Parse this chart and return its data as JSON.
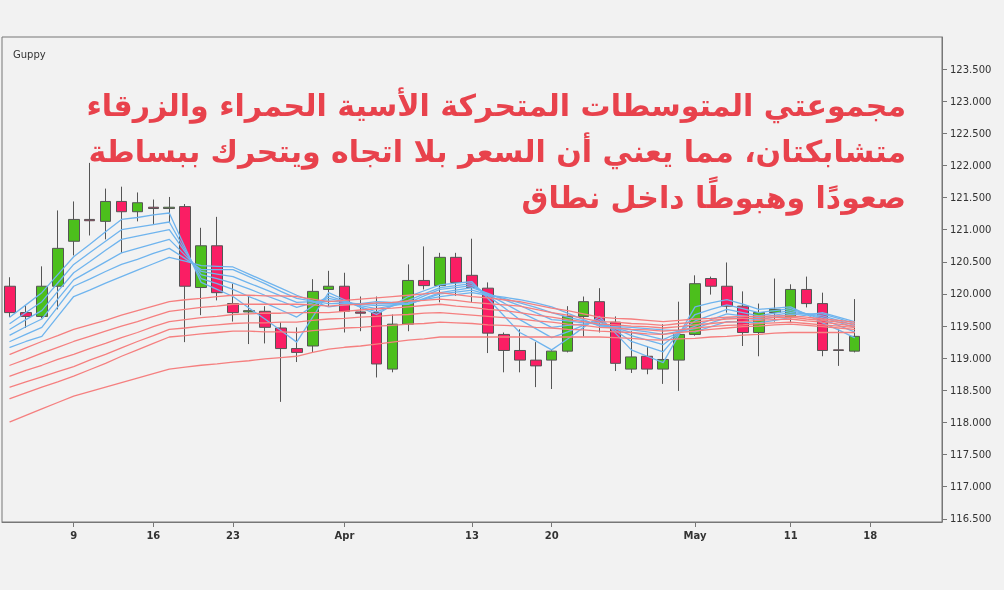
{
  "chart_data": {
    "type": "candlestick",
    "title": "Guppy",
    "annotations": [
      "مجموعتي المتوسطات المتحركة الأسية الحمراء والزرقاء",
      "متشابكتان، مما يعني أن السعر بلا اتجاه ويتحرك ببساطة",
      "صعودًا وهبوطًا داخل نطاق"
    ],
    "categories": [
      null,
      null,
      null,
      null,
      "9",
      null,
      null,
      null,
      null,
      "16",
      null,
      null,
      null,
      null,
      "23",
      null,
      null,
      null,
      null,
      null,
      null,
      "Apr",
      null,
      null,
      null,
      null,
      null,
      null,
      null,
      "13",
      null,
      null,
      null,
      null,
      "20",
      null,
      null,
      null,
      null,
      null,
      null,
      null,
      null,
      "May",
      null,
      null,
      null,
      null,
      null,
      "11",
      null,
      null,
      null,
      null,
      "18",
      null,
      null,
      null,
      null
    ],
    "ohlc": [
      [
        120.12,
        120.26,
        119.64,
        119.71
      ],
      [
        119.71,
        119.82,
        119.47,
        119.65
      ],
      [
        119.65,
        120.43,
        119.62,
        120.12
      ],
      [
        120.12,
        121.3,
        119.76,
        120.71
      ],
      [
        120.82,
        121.44,
        120.6,
        121.16
      ],
      [
        121.16,
        122.04,
        120.91,
        121.14
      ],
      [
        121.13,
        121.64,
        120.85,
        121.44
      ],
      [
        121.44,
        121.67,
        120.64,
        121.28
      ],
      [
        121.28,
        121.58,
        121.13,
        121.42
      ],
      [
        121.35,
        121.47,
        121.09,
        121.33
      ],
      [
        121.33,
        121.51,
        121.11,
        121.35
      ],
      [
        121.36,
        121.4,
        119.25,
        120.12
      ],
      [
        120.1,
        121.03,
        119.67,
        120.75
      ],
      [
        120.75,
        121.2,
        119.9,
        120.02
      ],
      [
        119.85,
        120.16,
        119.57,
        119.71
      ],
      [
        119.72,
        119.98,
        119.22,
        119.74
      ],
      [
        119.73,
        119.81,
        119.23,
        119.48
      ],
      [
        119.47,
        119.56,
        118.32,
        119.15
      ],
      [
        119.15,
        119.48,
        118.94,
        119.09
      ],
      [
        119.19,
        120.23,
        119.09,
        120.04
      ],
      [
        120.07,
        120.36,
        119.81,
        120.12
      ],
      [
        120.12,
        120.33,
        119.4,
        119.73
      ],
      [
        119.72,
        119.96,
        119.42,
        119.7
      ],
      [
        119.71,
        119.96,
        118.7,
        118.91
      ],
      [
        118.83,
        119.68,
        118.78,
        119.53
      ],
      [
        119.53,
        120.46,
        119.42,
        120.21
      ],
      [
        120.21,
        120.74,
        120.07,
        120.13
      ],
      [
        120.13,
        120.64,
        119.87,
        120.57
      ],
      [
        120.57,
        120.64,
        119.97,
        120.18
      ],
      [
        120.29,
        120.86,
        119.87,
        120.1
      ],
      [
        120.09,
        120.18,
        119.08,
        119.39
      ],
      [
        119.37,
        119.4,
        118.78,
        119.12
      ],
      [
        119.12,
        119.45,
        118.78,
        118.97
      ],
      [
        118.97,
        119.25,
        118.55,
        118.88
      ],
      [
        118.97,
        119.13,
        118.52,
        119.11
      ],
      [
        119.11,
        119.81,
        119.09,
        119.65
      ],
      [
        119.65,
        119.96,
        119.34,
        119.88
      ],
      [
        119.88,
        120.09,
        119.4,
        119.56
      ],
      [
        119.56,
        119.65,
        118.8,
        118.92
      ],
      [
        118.83,
        119.42,
        118.77,
        119.02
      ],
      [
        119.03,
        119.19,
        118.75,
        118.83
      ],
      [
        118.83,
        119.53,
        118.6,
        118.98
      ],
      [
        118.97,
        119.88,
        118.49,
        119.37
      ],
      [
        119.37,
        120.29,
        119.35,
        120.16
      ],
      [
        120.24,
        120.27,
        119.99,
        120.12
      ],
      [
        120.12,
        120.49,
        119.71,
        119.81
      ],
      [
        119.81,
        120.04,
        119.19,
        119.4
      ],
      [
        119.4,
        119.85,
        119.03,
        119.71
      ],
      [
        119.71,
        120.24,
        119.57,
        119.76
      ],
      [
        119.64,
        120.15,
        119.56,
        120.07
      ],
      [
        120.07,
        120.27,
        119.79,
        119.85
      ],
      [
        119.85,
        120.02,
        119.03,
        119.12
      ],
      [
        119.13,
        119.45,
        118.88,
        119.12
      ],
      [
        119.11,
        119.92,
        119.09,
        119.34
      ],
      null,
      null,
      null,
      null,
      null
    ],
    "colors": [
      "#fa1e64",
      "#fa1e64",
      "#4cbf1c",
      "#4cbf1c",
      "#4cbf1c",
      "#fa1e64",
      "#4cbf1c",
      "#fa1e64",
      "#4cbf1c",
      "#fa1e64",
      "#4cbf1c",
      "#fa1e64",
      "#4cbf1c",
      "#fa1e64",
      "#fa1e64",
      "#4cbf1c",
      "#fa1e64",
      "#fa1e64",
      "#fa1e64",
      "#4cbf1c",
      "#4cbf1c",
      "#fa1e64",
      "#fa1e64",
      "#fa1e64",
      "#4cbf1c",
      "#4cbf1c",
      "#fa1e64",
      "#4cbf1c",
      "#fa1e64",
      "#fa1e64",
      "#fa1e64",
      "#fa1e64",
      "#fa1e64",
      "#fa1e64",
      "#4cbf1c",
      "#4cbf1c",
      "#4cbf1c",
      "#fa1e64",
      "#fa1e64",
      "#4cbf1c",
      "#fa1e64",
      "#4cbf1c",
      "#4cbf1c",
      "#4cbf1c",
      "#fa1e64",
      "#fa1e64",
      "#fa1e64",
      "#4cbf1c",
      "#4cbf1c",
      "#4cbf1c",
      "#fa1e64",
      "#fa1e64",
      "#fa1e64",
      "#4cbf1c",
      null,
      null,
      null,
      null,
      null
    ],
    "series": [
      {
        "type": "line",
        "color": "#6fb4ee",
        "values": [
          119.64,
          119.83,
          120.02,
          120.3,
          120.58,
          120.77,
          120.97,
          121.16,
          121.19,
          121.23,
          121.26,
          120.72,
          120.18,
          120.07,
          119.96,
          119.78,
          119.61,
          119.43,
          119.25,
          119.64,
          120.02,
          119.91,
          119.79,
          119.68,
          119.82,
          119.96,
          120.05,
          120.14,
          120.17,
          120.19,
          119.93,
          119.66,
          119.4,
          119.27,
          119.13,
          119.3,
          119.48,
          119.65,
          119.39,
          119.13,
          119.03,
          118.93,
          119.37,
          119.8,
          119.86,
          119.91,
          119.84,
          119.76,
          119.78,
          119.8,
          119.68,
          119.55,
          119.44,
          119.32,
          null,
          null,
          null,
          null,
          null
        ]
      },
      {
        "type": "line",
        "color": "#6fb4ee",
        "values": [
          119.54,
          119.71,
          119.88,
          120.17,
          120.46,
          120.64,
          120.82,
          121.0,
          121.04,
          121.08,
          121.12,
          120.68,
          120.24,
          120.16,
          120.07,
          119.96,
          119.86,
          119.75,
          119.64,
          119.81,
          119.97,
          119.89,
          119.8,
          119.72,
          119.81,
          119.9,
          120.0,
          120.1,
          120.13,
          120.16,
          119.97,
          119.79,
          119.6,
          119.46,
          119.32,
          119.41,
          119.51,
          119.6,
          119.43,
          119.26,
          119.18,
          119.1,
          119.39,
          119.68,
          119.76,
          119.83,
          119.77,
          119.71,
          119.74,
          119.77,
          119.69,
          119.6,
          119.51,
          119.41,
          null,
          null,
          null,
          null,
          null
        ]
      },
      {
        "type": "line",
        "color": "#6fb4ee",
        "values": [
          119.45,
          119.6,
          119.74,
          120.04,
          120.33,
          120.5,
          120.68,
          120.85,
          120.9,
          120.95,
          121.0,
          120.65,
          120.3,
          120.24,
          120.17,
          120.08,
          119.98,
          119.89,
          119.79,
          119.86,
          119.93,
          119.88,
          119.82,
          119.77,
          119.82,
          119.86,
          119.97,
          120.07,
          120.1,
          120.13,
          119.99,
          119.86,
          119.72,
          119.6,
          119.48,
          119.51,
          119.53,
          119.56,
          119.46,
          119.35,
          119.28,
          119.21,
          119.4,
          119.58,
          119.67,
          119.76,
          119.71,
          119.66,
          119.7,
          119.74,
          119.69,
          119.63,
          119.56,
          119.48,
          null,
          null,
          null,
          null,
          null
        ]
      },
      {
        "type": "line",
        "color": "#6fb4ee",
        "values": [
          119.36,
          119.49,
          119.61,
          119.92,
          120.22,
          120.36,
          120.5,
          120.64,
          120.71,
          120.78,
          120.85,
          120.6,
          120.35,
          120.31,
          120.27,
          120.17,
          120.07,
          119.97,
          119.87,
          119.88,
          119.89,
          119.87,
          119.84,
          119.82,
          119.83,
          119.84,
          119.93,
          120.02,
          120.06,
          120.1,
          120.01,
          119.91,
          119.82,
          119.71,
          119.6,
          119.58,
          119.55,
          119.53,
          119.47,
          119.4,
          119.35,
          119.29,
          119.4,
          119.5,
          119.6,
          119.69,
          119.66,
          119.63,
          119.67,
          119.71,
          119.69,
          119.66,
          119.59,
          119.51,
          null,
          null,
          null,
          null,
          null
        ]
      },
      {
        "type": "line",
        "color": "#6fb4ee",
        "values": [
          119.26,
          119.37,
          119.48,
          119.8,
          120.12,
          120.23,
          120.35,
          120.46,
          120.54,
          120.63,
          120.71,
          120.55,
          120.38,
          120.38,
          120.38,
          120.27,
          120.16,
          120.04,
          119.93,
          119.89,
          119.85,
          119.85,
          119.85,
          119.85,
          119.85,
          119.84,
          119.92,
          120.0,
          120.03,
          120.06,
          119.99,
          119.93,
          119.86,
          119.79,
          119.71,
          119.64,
          119.58,
          119.51,
          119.48,
          119.44,
          119.41,
          119.37,
          119.42,
          119.46,
          119.55,
          119.63,
          119.62,
          119.6,
          119.64,
          119.68,
          119.69,
          119.69,
          119.62,
          119.54,
          null,
          null,
          null,
          null,
          null
        ]
      },
      {
        "type": "line",
        "color": "#6fb4ee",
        "values": [
          119.17,
          119.26,
          119.34,
          119.65,
          119.96,
          120.06,
          120.17,
          120.27,
          120.37,
          120.47,
          120.57,
          120.51,
          120.44,
          120.43,
          120.42,
          120.31,
          120.2,
          120.09,
          119.98,
          119.89,
          119.8,
          119.83,
          119.85,
          119.88,
          119.87,
          119.85,
          119.91,
          119.96,
          119.99,
          120.02,
          119.98,
          119.95,
          119.91,
          119.86,
          119.8,
          119.7,
          119.6,
          119.5,
          119.49,
          119.48,
          119.46,
          119.44,
          119.43,
          119.41,
          119.49,
          119.57,
          119.56,
          119.55,
          119.59,
          119.63,
          119.67,
          119.71,
          119.64,
          119.57,
          null,
          null,
          null,
          null,
          null
        ]
      },
      {
        "type": "line",
        "color": "#f57f7f",
        "values": [
          119.06,
          119.16,
          119.26,
          119.35,
          119.45,
          119.52,
          119.59,
          119.67,
          119.74,
          119.81,
          119.88,
          119.91,
          119.93,
          119.96,
          119.98,
          119.98,
          119.97,
          119.97,
          119.96,
          119.92,
          119.88,
          119.9,
          119.92,
          119.94,
          119.96,
          119.98,
          120.0,
          120.02,
          119.99,
          119.96,
          119.94,
          119.91,
          119.88,
          119.83,
          119.78,
          119.74,
          119.69,
          119.64,
          119.62,
          119.61,
          119.59,
          119.57,
          119.59,
          119.61,
          119.62,
          119.64,
          119.65,
          119.65,
          119.66,
          119.66,
          119.64,
          119.61,
          119.59,
          119.56,
          null,
          null,
          null,
          null,
          null
        ]
      },
      {
        "type": "line",
        "color": "#f57f7f",
        "values": [
          118.89,
          118.98,
          119.08,
          119.17,
          119.26,
          119.34,
          119.42,
          119.5,
          119.57,
          119.65,
          119.73,
          119.76,
          119.79,
          119.81,
          119.84,
          119.84,
          119.84,
          119.84,
          119.84,
          119.83,
          119.81,
          119.83,
          119.84,
          119.86,
          119.87,
          119.89,
          119.9,
          119.92,
          119.9,
          119.87,
          119.85,
          119.83,
          119.81,
          119.76,
          119.71,
          119.67,
          119.62,
          119.57,
          119.56,
          119.54,
          119.53,
          119.51,
          119.54,
          119.56,
          119.59,
          119.61,
          119.62,
          119.62,
          119.63,
          119.64,
          119.61,
          119.59,
          119.56,
          119.53,
          null,
          null,
          null,
          null,
          null
        ]
      },
      {
        "type": "line",
        "color": "#f57f7f",
        "values": [
          118.72,
          118.81,
          118.89,
          118.98,
          119.06,
          119.15,
          119.23,
          119.32,
          119.4,
          119.49,
          119.57,
          119.6,
          119.63,
          119.65,
          119.68,
          119.69,
          119.7,
          119.7,
          119.71,
          119.71,
          119.71,
          119.73,
          119.75,
          119.77,
          119.78,
          119.8,
          119.82,
          119.84,
          119.81,
          119.79,
          119.76,
          119.74,
          119.71,
          119.67,
          119.64,
          119.6,
          119.57,
          119.53,
          119.52,
          119.5,
          119.49,
          119.47,
          119.49,
          119.52,
          119.54,
          119.56,
          119.57,
          119.59,
          119.6,
          119.61,
          119.58,
          119.56,
          119.53,
          119.5,
          null,
          null,
          null,
          null,
          null
        ]
      },
      {
        "type": "line",
        "color": "#f57f7f",
        "values": [
          118.55,
          118.63,
          118.71,
          118.79,
          118.87,
          118.97,
          119.06,
          119.16,
          119.26,
          119.35,
          119.45,
          119.47,
          119.5,
          119.52,
          119.54,
          119.55,
          119.55,
          119.56,
          119.56,
          119.59,
          119.61,
          119.62,
          119.64,
          119.65,
          119.67,
          119.68,
          119.7,
          119.71,
          119.69,
          119.67,
          119.65,
          119.63,
          119.61,
          119.58,
          119.56,
          119.53,
          119.51,
          119.48,
          119.47,
          119.45,
          119.44,
          119.42,
          119.44,
          119.47,
          119.49,
          119.51,
          119.52,
          119.54,
          119.55,
          119.56,
          119.54,
          119.52,
          119.5,
          119.48,
          null,
          null,
          null,
          null,
          null
        ]
      },
      {
        "type": "line",
        "color": "#f57f7f",
        "values": [
          118.37,
          118.46,
          118.55,
          118.63,
          118.72,
          118.82,
          118.92,
          119.03,
          119.13,
          119.23,
          119.33,
          119.35,
          119.38,
          119.4,
          119.42,
          119.42,
          119.41,
          119.41,
          119.4,
          119.43,
          119.45,
          119.47,
          119.48,
          119.5,
          119.51,
          119.53,
          119.54,
          119.56,
          119.55,
          119.54,
          119.52,
          119.51,
          119.5,
          119.48,
          119.47,
          119.45,
          119.44,
          119.42,
          119.41,
          119.4,
          119.38,
          119.37,
          119.4,
          119.42,
          119.45,
          119.47,
          119.49,
          119.5,
          119.52,
          119.53,
          119.51,
          119.49,
          119.47,
          119.45,
          null,
          null,
          null,
          null,
          null
        ]
      },
      {
        "type": "line",
        "color": "#f57f7f",
        "values": [
          118.01,
          118.11,
          118.21,
          118.31,
          118.41,
          118.48,
          118.55,
          118.62,
          118.69,
          118.76,
          118.83,
          118.86,
          118.89,
          118.91,
          118.94,
          118.96,
          118.99,
          119.01,
          119.03,
          119.09,
          119.14,
          119.17,
          119.19,
          119.22,
          119.25,
          119.28,
          119.3,
          119.33,
          119.33,
          119.33,
          119.33,
          119.33,
          119.33,
          119.33,
          119.33,
          119.33,
          119.33,
          119.33,
          119.32,
          119.31,
          119.29,
          119.28,
          119.3,
          119.31,
          119.33,
          119.34,
          119.36,
          119.37,
          119.39,
          119.4,
          119.4,
          119.4,
          119.4,
          119.4,
          null,
          null,
          null,
          null,
          null
        ]
      }
    ],
    "ylim": [
      116.45,
      124.0
    ],
    "yticks": [
      {
        "value": 116.5,
        "label": "116.500"
      },
      {
        "value": 117,
        "label": "117.000"
      },
      {
        "value": 117.5,
        "label": "117.500"
      },
      {
        "value": 118,
        "label": "118.000"
      },
      {
        "value": 118.5,
        "label": "118.500"
      },
      {
        "value": 119,
        "label": "119.000"
      },
      {
        "value": 119.5,
        "label": "119.500"
      },
      {
        "value": 120,
        "label": "120.000"
      },
      {
        "value": 120.5,
        "label": "120.500"
      },
      {
        "value": 121,
        "label": "121.000"
      },
      {
        "value": 121.5,
        "label": "121.500"
      },
      {
        "value": 122,
        "label": "122.000"
      },
      {
        "value": 122.5,
        "label": "122.500"
      },
      {
        "value": 123,
        "label": "123.000"
      },
      {
        "value": 123.5,
        "label": "123.500"
      }
    ]
  }
}
